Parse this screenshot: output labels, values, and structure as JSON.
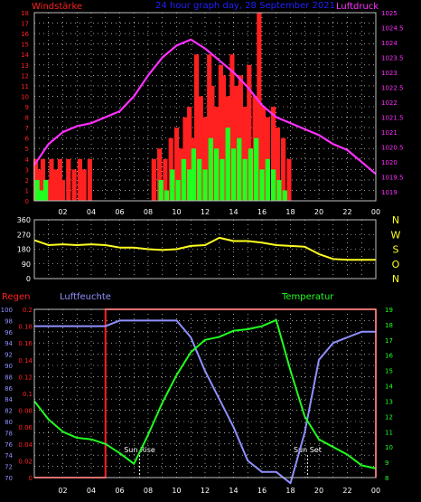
{
  "header": {
    "wind_label": "Windstärke",
    "title": "24 hour graph day, 28 September 2021",
    "pressure_label": "Luftdruck"
  },
  "colors": {
    "wind_peak": "#ff2020",
    "wind_avg": "#20ff20",
    "pressure": "#ff30ff",
    "direction": "#ffff20",
    "humidity": "#9090ff",
    "temperature": "#20ff20",
    "rain": "#ff2020",
    "grid": "#ffffff",
    "frame": "#c0c0c0",
    "title": "#2020ff"
  },
  "time_ticks": [
    "02",
    "04",
    "06",
    "08",
    "10",
    "12",
    "14",
    "16",
    "18",
    "20",
    "22",
    "00"
  ],
  "chart_data": [
    {
      "type": "bar",
      "y_left_ticks": [
        "0",
        "1",
        "2",
        "3",
        "4",
        "5",
        "6",
        "7",
        "8",
        "9",
        "10",
        "11",
        "12",
        "13",
        "14",
        "15",
        "16",
        "17",
        "18"
      ],
      "y_right_ticks": [
        "1019",
        "1019.5",
        "1020",
        "1020.5",
        "1021",
        "1021.5",
        "1022",
        "1022.5",
        "1023",
        "1023.5",
        "1024",
        "1024.5",
        "1025"
      ],
      "ylim_left": [
        0,
        18
      ],
      "ylim_right": [
        1018.7,
        1025
      ],
      "x_hours": [
        0,
        24
      ],
      "series": [
        {
          "name": "Windstärke",
          "peaks": [
            [
              0.1,
              4
            ],
            [
              0.4,
              3
            ],
            [
              0.6,
              4
            ],
            [
              0.9,
              2
            ],
            [
              1.2,
              4
            ],
            [
              1.5,
              3
            ],
            [
              1.8,
              4
            ],
            [
              2.0,
              2
            ],
            [
              2.4,
              4
            ],
            [
              2.8,
              3
            ],
            [
              3.2,
              4
            ],
            [
              3.5,
              3
            ],
            [
              3.9,
              4
            ],
            [
              8.4,
              4
            ],
            [
              8.8,
              5
            ],
            [
              9.2,
              4
            ],
            [
              9.6,
              6
            ],
            [
              10.0,
              7
            ],
            [
              10.3,
              5
            ],
            [
              10.6,
              8
            ],
            [
              10.9,
              9
            ],
            [
              11.1,
              6
            ],
            [
              11.4,
              14
            ],
            [
              11.7,
              10
            ],
            [
              12.0,
              8
            ],
            [
              12.3,
              14
            ],
            [
              12.5,
              11
            ],
            [
              12.8,
              9
            ],
            [
              13.1,
              13
            ],
            [
              13.3,
              12
            ],
            [
              13.6,
              10
            ],
            [
              13.9,
              14
            ],
            [
              14.2,
              11
            ],
            [
              14.5,
              12
            ],
            [
              14.8,
              9
            ],
            [
              15.1,
              13
            ],
            [
              15.5,
              10
            ],
            [
              15.8,
              18
            ],
            [
              16.1,
              9
            ],
            [
              16.4,
              8
            ],
            [
              16.8,
              9
            ],
            [
              17.1,
              7
            ],
            [
              17.5,
              6
            ],
            [
              17.9,
              4
            ]
          ],
          "avgs": [
            [
              0.2,
              2
            ],
            [
              0.5,
              1
            ],
            [
              0.8,
              2
            ],
            [
              8.9,
              2
            ],
            [
              9.3,
              1
            ],
            [
              9.7,
              3
            ],
            [
              10.1,
              2
            ],
            [
              10.5,
              4
            ],
            [
              10.9,
              3
            ],
            [
              11.2,
              5
            ],
            [
              11.6,
              4
            ],
            [
              12.0,
              3
            ],
            [
              12.4,
              6
            ],
            [
              12.8,
              5
            ],
            [
              13.2,
              4
            ],
            [
              13.6,
              7
            ],
            [
              14.0,
              5
            ],
            [
              14.4,
              6
            ],
            [
              14.8,
              4
            ],
            [
              15.2,
              5
            ],
            [
              15.6,
              6
            ],
            [
              16.0,
              3
            ],
            [
              16.4,
              4
            ],
            [
              16.8,
              3
            ],
            [
              17.2,
              2
            ],
            [
              17.6,
              1
            ]
          ]
        },
        {
          "name": "Luftdruck",
          "x": [
            0,
            1,
            2,
            3,
            4,
            5,
            6,
            7,
            8,
            9,
            10,
            11,
            12,
            13,
            14,
            15,
            16,
            17,
            18,
            19,
            20,
            21,
            22,
            23,
            24
          ],
          "values": [
            1019.9,
            1020.6,
            1021.0,
            1021.2,
            1021.3,
            1021.5,
            1021.7,
            1022.2,
            1022.9,
            1023.5,
            1023.9,
            1024.1,
            1023.8,
            1023.4,
            1023.0,
            1022.5,
            1021.9,
            1021.5,
            1021.3,
            1021.1,
            1020.9,
            1020.6,
            1020.4,
            1020.0,
            1019.6
          ]
        }
      ]
    },
    {
      "type": "line",
      "y_ticks": [
        "0",
        "90",
        "180",
        "270",
        "360"
      ],
      "compass_labels": [
        "N",
        "W",
        "S",
        "O",
        "N"
      ],
      "ylim": [
        0,
        360
      ],
      "x": [
        0,
        1,
        2,
        3,
        4,
        5,
        6,
        7,
        8,
        9,
        10,
        11,
        12,
        13,
        14,
        15,
        16,
        17,
        18,
        19,
        20,
        21,
        22,
        23,
        24
      ],
      "values": [
        235,
        205,
        210,
        205,
        210,
        205,
        190,
        190,
        180,
        175,
        180,
        200,
        205,
        250,
        230,
        230,
        220,
        205,
        200,
        195,
        150,
        120,
        115,
        115,
        115
      ]
    },
    {
      "type": "line",
      "labels": {
        "rain": "Regen",
        "humidity": "Luftfeuchte",
        "temperature": "Temperatur"
      },
      "rain_ticks": [
        "0",
        "0.02",
        "0.04",
        "0.06",
        "0.08",
        "0.1",
        "0.12",
        "0.14",
        "0.16",
        "0.18",
        "0.2"
      ],
      "humidity_ticks": [
        "70",
        "72",
        "74",
        "76",
        "78",
        "80",
        "82",
        "84",
        "86",
        "88",
        "90",
        "92",
        "94",
        "96",
        "98",
        "100"
      ],
      "temperature_ticks": [
        "8",
        "9",
        "10",
        "11",
        "12",
        "13",
        "14",
        "15",
        "16",
        "17",
        "18",
        "19"
      ],
      "ylim_rain": [
        0,
        0.2
      ],
      "ylim_humidity": [
        70,
        100
      ],
      "ylim_temperature": [
        8,
        19
      ],
      "x": [
        0,
        1,
        2,
        3,
        4,
        5,
        6,
        7,
        8,
        9,
        10,
        11,
        12,
        13,
        14,
        15,
        16,
        17,
        18,
        19,
        20,
        21,
        22,
        23,
        24
      ],
      "humidity": [
        97,
        97,
        97,
        97,
        97,
        97,
        98,
        98,
        98,
        98,
        98,
        95,
        89,
        84,
        79,
        73,
        71,
        71,
        69,
        78,
        91,
        94,
        95,
        96,
        96
      ],
      "temperature": [
        13.0,
        11.8,
        11.0,
        10.6,
        10.5,
        10.2,
        9.6,
        8.9,
        10.8,
        12.9,
        14.7,
        16.2,
        17.0,
        17.2,
        17.6,
        17.7,
        17.9,
        18.3,
        15.0,
        12.0,
        10.5,
        10.0,
        9.5,
        8.8,
        8.6
      ],
      "rain": [
        0,
        0,
        0,
        0,
        0,
        0.2,
        0.2,
        0.2,
        0.2,
        0.2,
        0.2,
        0.2,
        0.2,
        0.2,
        0.2,
        0.2,
        0.2,
        0.2,
        0.2,
        0.2,
        0.2,
        0.2,
        0.2,
        0.2,
        0
      ],
      "annotations": [
        {
          "label": "Sun Rise",
          "hour": 7.4
        },
        {
          "label": "Sun Set",
          "hour": 19.2
        }
      ]
    }
  ]
}
